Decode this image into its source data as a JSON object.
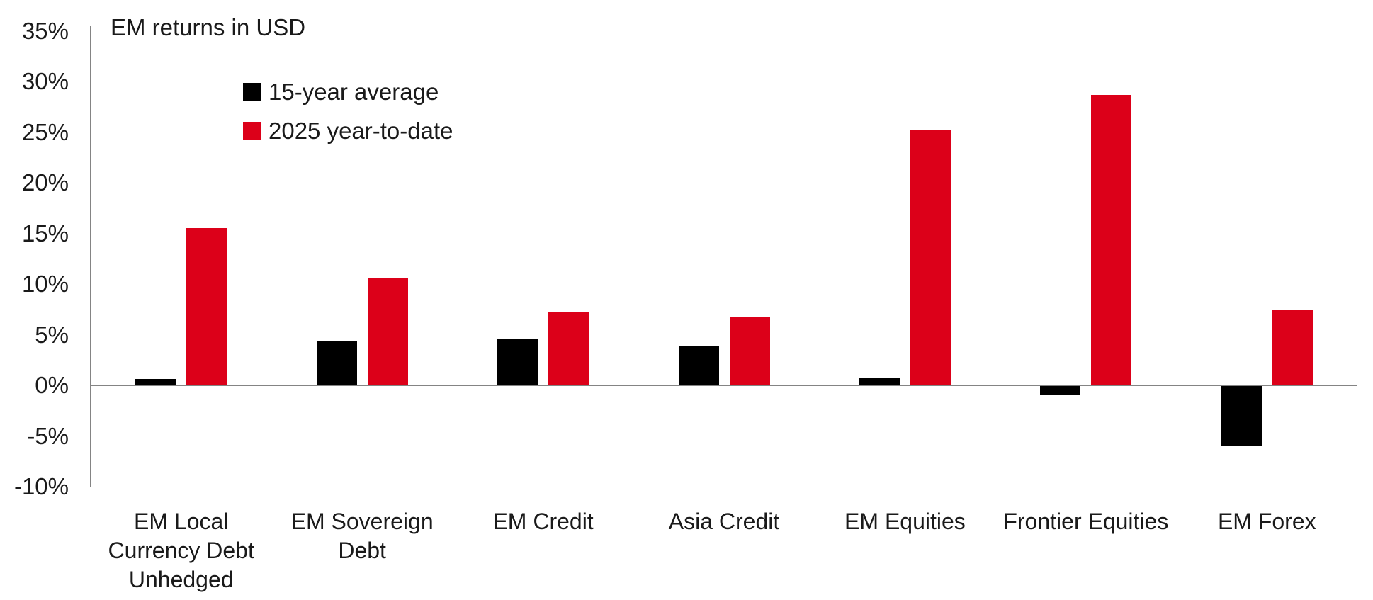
{
  "chart_data": {
    "type": "bar",
    "title": "EM returns in USD",
    "categories": [
      "EM Local Currency Debt Unhedged",
      "EM Sovereign Debt",
      "EM Credit",
      "Asia Credit",
      "EM Equities",
      "Frontier Equities",
      "EM Forex"
    ],
    "category_lines": [
      [
        "EM Local",
        "Currency Debt",
        "Unhedged"
      ],
      [
        "EM Sovereign",
        "Debt"
      ],
      [
        "EM Credit"
      ],
      [
        "Asia Credit"
      ],
      [
        "EM Equities"
      ],
      [
        "Frontier Equities"
      ],
      [
        "EM Forex"
      ]
    ],
    "series": [
      {
        "name": "15-year average",
        "color": "#000000",
        "values": [
          0.6,
          4.4,
          4.6,
          3.9,
          0.7,
          -1.0,
          -6.0
        ]
      },
      {
        "name": "2025 year-to-date",
        "color": "#dc0019",
        "values": [
          15.5,
          10.6,
          7.3,
          6.8,
          25.2,
          28.7,
          7.4
        ]
      }
    ],
    "xlabel": "",
    "ylabel": "",
    "yticks": [
      35,
      30,
      25,
      20,
      15,
      10,
      5,
      0,
      -5,
      -10
    ],
    "tick_suffix": "%",
    "ylim": [
      -10,
      35
    ],
    "grid": false,
    "legend_position": "top-left-inside",
    "axis_color": "#848484"
  }
}
